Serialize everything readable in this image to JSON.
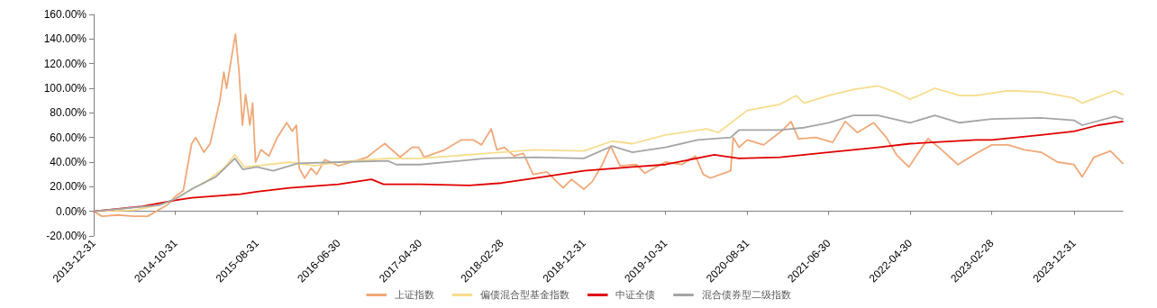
{
  "chart_data": {
    "type": "line",
    "legend": "bottom",
    "marker": "none",
    "line_style": "solid",
    "xlim": [
      "2013-12-31",
      "2024-06-30"
    ],
    "xticks": [
      "2013-12-31",
      "2014-10-31",
      "2015-08-31",
      "2016-06-30",
      "2017-04-30",
      "2018-02-28",
      "2018-12-31",
      "2019-10-31",
      "2020-08-31",
      "2021-06-30",
      "2022-04-30",
      "2023-02-28",
      "2023-12-31"
    ],
    "ylim": [
      -20,
      160
    ],
    "yticks": [
      {
        "value": -20,
        "label": "-20.00%"
      },
      {
        "value": 0,
        "label": "0.00%"
      },
      {
        "value": 20,
        "label": "20.00%"
      },
      {
        "value": 40,
        "label": "40.00%"
      },
      {
        "value": 60,
        "label": "60.00%"
      },
      {
        "value": 80,
        "label": "80.00%"
      },
      {
        "value": 100,
        "label": "100.00%"
      },
      {
        "value": 120,
        "label": "120.00%"
      },
      {
        "value": 140,
        "label": "140.00%"
      },
      {
        "value": 160,
        "label": "160.00%"
      }
    ],
    "series": [
      {
        "name": "上证指数",
        "color": "#f0a878",
        "x": [
          "2013-12-31",
          "2014-01-31",
          "2014-03-31",
          "2014-05-31",
          "2014-07-20",
          "2014-09-30",
          "2014-10-31",
          "2014-11-30",
          "2014-12-20",
          "2014-12-31",
          "2015-01-15",
          "2015-02-15",
          "2015-03-10",
          "2015-04-15",
          "2015-04-30",
          "2015-05-10",
          "2015-06-05",
          "2015-06-12",
          "2015-06-25",
          "2015-07-08",
          "2015-07-20",
          "2015-08-05",
          "2015-08-15",
          "2015-08-26",
          "2015-09-15",
          "2015-10-15",
          "2015-11-15",
          "2015-12-20",
          "2016-01-10",
          "2016-01-25",
          "2016-02-05",
          "2016-02-25",
          "2016-03-20",
          "2016-04-10",
          "2016-05-10",
          "2016-06-30",
          "2016-08-15",
          "2016-10-15",
          "2016-11-30",
          "2016-12-20",
          "2017-02-15",
          "2017-03-31",
          "2017-04-25",
          "2017-05-15",
          "2017-07-31",
          "2017-09-30",
          "2017-11-15",
          "2017-12-15",
          "2018-01-20",
          "2018-02-10",
          "2018-03-10",
          "2018-04-15",
          "2018-05-20",
          "2018-06-25",
          "2018-08-15",
          "2018-10-15",
          "2018-11-15",
          "2018-12-31",
          "2019-01-31",
          "2019-03-10",
          "2019-04-10",
          "2019-05-15",
          "2019-07-15",
          "2019-08-15",
          "2019-10-31",
          "2019-12-31",
          "2020-02-20",
          "2020-03-20",
          "2020-04-15",
          "2020-06-30",
          "2020-07-10",
          "2020-07-31",
          "2020-08-31",
          "2020-10-31",
          "2021-01-10",
          "2021-02-10",
          "2021-03-10",
          "2021-05-15",
          "2021-07-15",
          "2021-08-31",
          "2021-10-15",
          "2021-12-15",
          "2022-01-31",
          "2022-03-10",
          "2022-04-25",
          "2022-07-05",
          "2022-08-15",
          "2022-10-25",
          "2022-12-31",
          "2023-02-28",
          "2023-04-30",
          "2023-06-30",
          "2023-08-31",
          "2023-10-31",
          "2023-12-31",
          "2024-01-31",
          "2024-03-15",
          "2024-05-15",
          "2024-06-30"
        ],
        "values": [
          0,
          -4,
          -3,
          -4,
          -4,
          5,
          12,
          17,
          42,
          55,
          60,
          48,
          55,
          90,
          113,
          100,
          135,
          144,
          115,
          70,
          95,
          70,
          88,
          40,
          50,
          45,
          60,
          72,
          65,
          70,
          35,
          27,
          35,
          30,
          42,
          37,
          40,
          44,
          52,
          55,
          44,
          52,
          52,
          44,
          50,
          58,
          58,
          54,
          67,
          50,
          52,
          45,
          47,
          30,
          32,
          19,
          26,
          18,
          24,
          38,
          53,
          37,
          38,
          31,
          40,
          38,
          45,
          30,
          27,
          33,
          60,
          52,
          58,
          54,
          66,
          73,
          59,
          60,
          56,
          73,
          64,
          72,
          60,
          46,
          36,
          59,
          52,
          38,
          47,
          54,
          54,
          50,
          48,
          40,
          38,
          28,
          44,
          49,
          39
        ]
      },
      {
        "name": "偏债混合型基金指数",
        "color": "#f7dc8c",
        "x": [
          "2013-12-31",
          "2014-05-31",
          "2014-08-31",
          "2014-10-31",
          "2014-12-31",
          "2015-02-28",
          "2015-04-30",
          "2015-06-10",
          "2015-07-15",
          "2015-08-31",
          "2015-12-31",
          "2016-03-31",
          "2016-06-30",
          "2016-12-31",
          "2017-04-30",
          "2017-12-31",
          "2018-06-30",
          "2018-12-31",
          "2019-04-15",
          "2019-06-30",
          "2019-10-31",
          "2020-03-31",
          "2020-05-15",
          "2020-08-31",
          "2020-12-31",
          "2021-02-28",
          "2021-03-31",
          "2021-06-30",
          "2021-09-30",
          "2021-12-31",
          "2022-03-15",
          "2022-04-30",
          "2022-07-31",
          "2022-10-31",
          "2022-12-31",
          "2023-04-30",
          "2023-08-31",
          "2023-12-31",
          "2024-01-31",
          "2024-05-31",
          "2024-06-30"
        ],
        "values": [
          0,
          1,
          5,
          10,
          18,
          25,
          35,
          46,
          36,
          37,
          40,
          37,
          40,
          43,
          43,
          47,
          50,
          49,
          57,
          55,
          62,
          67,
          64,
          82,
          87,
          94,
          88,
          94,
          99,
          102,
          96,
          91,
          100,
          94,
          94,
          98,
          97,
          92,
          88,
          98,
          95
        ]
      },
      {
        "name": "中证全债",
        "color": "#e00000",
        "x": [
          "2013-12-31",
          "2014-06-30",
          "2014-10-31",
          "2014-12-31",
          "2015-06-30",
          "2015-08-31",
          "2015-12-31",
          "2016-06-30",
          "2016-10-31",
          "2016-12-15",
          "2017-04-30",
          "2017-10-31",
          "2018-02-28",
          "2018-06-30",
          "2018-12-31",
          "2019-06-30",
          "2019-10-31",
          "2020-04-30",
          "2020-07-31",
          "2020-12-31",
          "2021-06-30",
          "2021-12-31",
          "2022-04-30",
          "2022-12-31",
          "2023-02-28",
          "2023-08-31",
          "2023-12-31",
          "2024-03-31",
          "2024-06-30"
        ],
        "values": [
          0,
          4,
          9,
          11,
          14,
          16,
          19,
          22,
          26,
          22,
          22,
          21,
          23,
          27,
          33,
          36,
          38,
          46,
          43,
          44,
          48,
          52,
          55,
          58,
          58,
          62,
          65,
          70,
          73
        ]
      },
      {
        "name": "混合债券型二级指数",
        "color": "#a5a5a5",
        "x": [
          "2013-12-31",
          "2014-08-31",
          "2014-10-31",
          "2014-12-31",
          "2015-03-31",
          "2015-06-10",
          "2015-07-10",
          "2015-08-31",
          "2015-10-31",
          "2016-01-31",
          "2016-06-30",
          "2016-12-31",
          "2017-01-31",
          "2017-04-30",
          "2017-12-31",
          "2018-06-30",
          "2018-12-31",
          "2019-04-15",
          "2019-06-30",
          "2019-10-31",
          "2020-02-28",
          "2020-06-30",
          "2020-07-31",
          "2020-12-31",
          "2021-03-31",
          "2021-06-30",
          "2021-09-30",
          "2021-12-31",
          "2022-04-30",
          "2022-07-31",
          "2022-10-31",
          "2023-02-28",
          "2023-08-31",
          "2023-12-31",
          "2024-01-31",
          "2024-05-31",
          "2024-06-30"
        ],
        "values": [
          0,
          5,
          10,
          18,
          28,
          43,
          34,
          36,
          33,
          39,
          40,
          41,
          38,
          38,
          43,
          44,
          43,
          53,
          48,
          52,
          58,
          60,
          66,
          66,
          68,
          72,
          78,
          78,
          72,
          78,
          72,
          75,
          76,
          74,
          70,
          77,
          75
        ]
      }
    ]
  }
}
